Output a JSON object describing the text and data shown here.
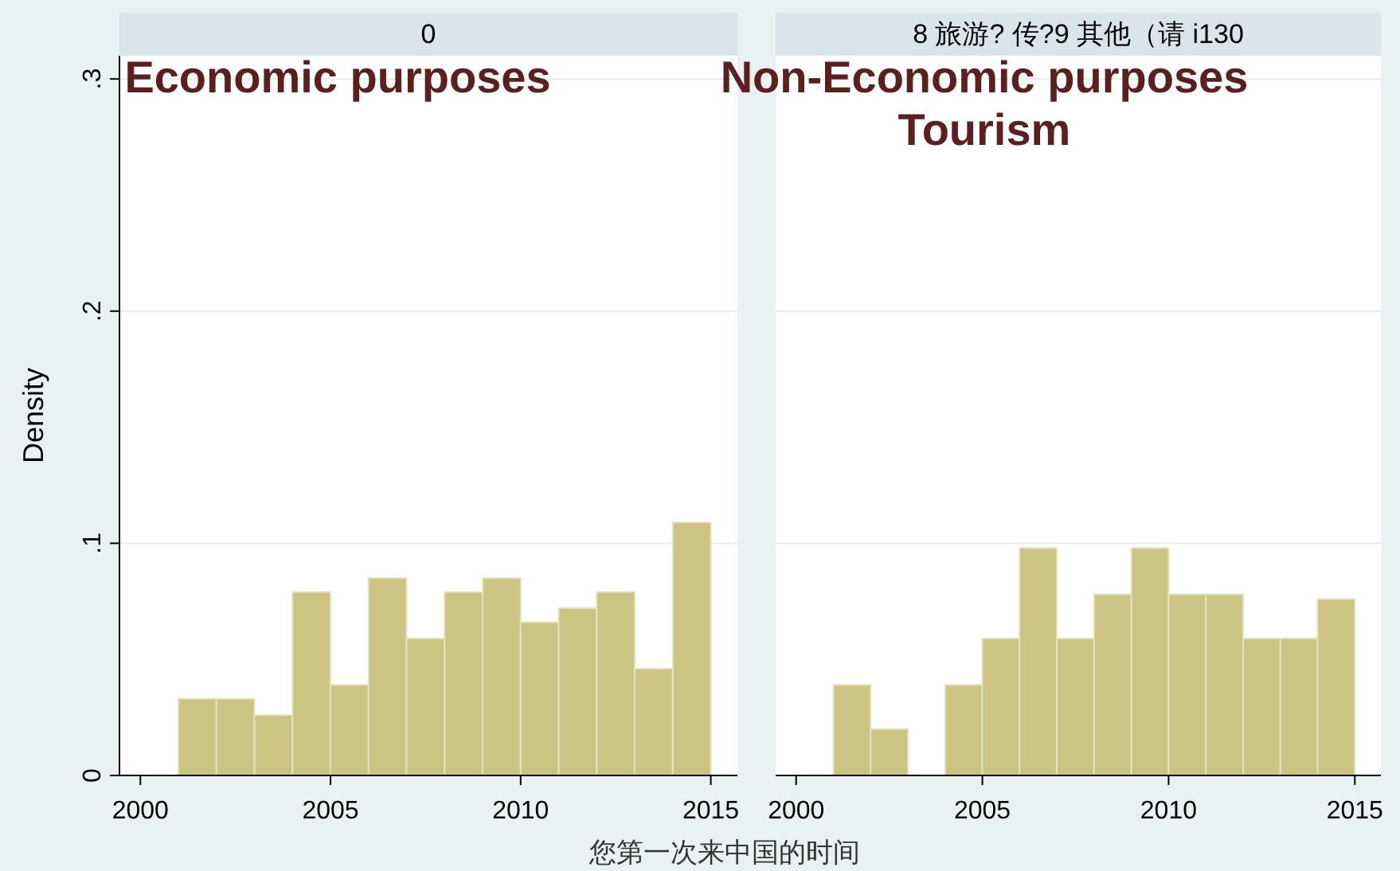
{
  "chart_data": [
    {
      "type": "histogram",
      "title": "0",
      "ylabel": "Density",
      "xlabel": "您第一次来中国的时间",
      "annotations": [
        "Economic purposes"
      ],
      "bins": [
        2001,
        2002,
        2003,
        2004,
        2005,
        2006,
        2007,
        2008,
        2009,
        2010,
        2011,
        2012,
        2013,
        2014,
        2015
      ],
      "values": [
        0.033,
        0.033,
        0.026,
        0.079,
        0.039,
        0.085,
        0.059,
        0.079,
        0.085,
        0.066,
        0.072,
        0.079,
        0.046,
        0.109
      ],
      "color": "#cbc482",
      "xlim": [
        1999.45,
        2015.7
      ],
      "ylim": [
        0,
        0.31
      ],
      "xticks": [
        2000,
        2005,
        2010,
        2015
      ],
      "yticks": [
        0,
        {
          "value": 0.1,
          "label": ".1"
        },
        {
          "value": 0.2,
          "label": ".2"
        },
        {
          "value": 0.3,
          "label": ".3"
        }
      ],
      "grid": "y"
    },
    {
      "type": "histogram",
      "title": "8 旅游? 传?9 其他（请      i130",
      "annotations": [
        "Non-Economic purposes",
        "Tourism"
      ],
      "bins": [
        2001,
        2002,
        2003,
        2004,
        2005,
        2006,
        2007,
        2008,
        2009,
        2010,
        2011,
        2012,
        2013,
        2014,
        2015
      ],
      "values": [
        0.039,
        0.02,
        0,
        0.039,
        0.059,
        0.098,
        0.059,
        0.078,
        0.098,
        0.078,
        0.078,
        0.059,
        0.059,
        0.076
      ],
      "color": "#cbc482",
      "xlim": [
        1999.45,
        2015.7
      ],
      "ylim": [
        0,
        0.31
      ],
      "xticks": [
        2000,
        2005,
        2010,
        2015
      ],
      "yticks": [
        0,
        0.1,
        0.2,
        0.3
      ],
      "grid": "y",
      "tick_labels": "x"
    }
  ]
}
